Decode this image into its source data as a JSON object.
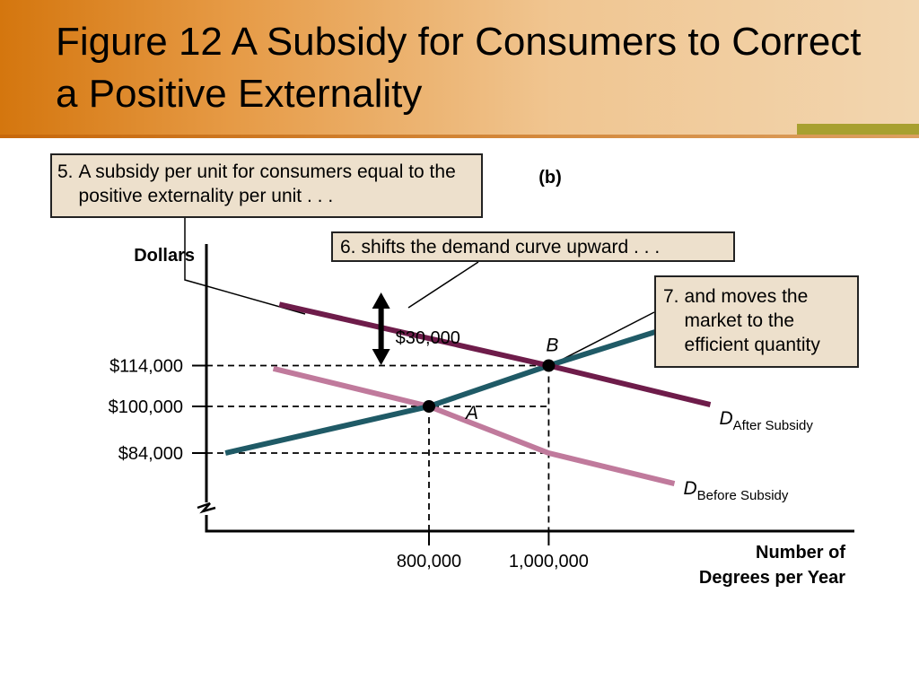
{
  "title": "Figure 12 A Subsidy for Consumers to Correct a Positive Externality",
  "colors": {
    "header_orange": "#d4760e",
    "header_light": "#f2d6b0",
    "stripe_olive": "#a8a030",
    "supply_teal": "#1f5a66",
    "demand_after": "#6e1c4a",
    "demand_before": "#c07a9c",
    "note_bg": "#ede0cc"
  },
  "notes": {
    "note5": {
      "number": "5.",
      "text": "A subsidy per unit for consumers equal to the positive externality per unit . . ."
    },
    "note6": {
      "number": "6.",
      "text": "shifts the demand curve upward . . ."
    },
    "note7": {
      "number": "7.",
      "text": "and moves the market to the efficient quantity"
    }
  },
  "chart_data": {
    "type": "line",
    "panel_label": "(b)",
    "ylabel": "Dollars",
    "xlabel": "Number of Degrees per Year",
    "y_ticks": [
      {
        "value": 114000,
        "label": "$114,000"
      },
      {
        "value": 100000,
        "label": "$100,000"
      },
      {
        "value": 84000,
        "label": "$84,000"
      }
    ],
    "x_ticks": [
      {
        "value": 800000,
        "label": "800,000"
      },
      {
        "value": 1000000,
        "label": "1,000,000"
      }
    ],
    "y_axis_break": true,
    "series": [
      {
        "key": "supply",
        "points": [
          [
            460000,
            84000
          ],
          [
            800000,
            100000
          ],
          [
            1000000,
            114000
          ],
          [
            1185000,
            126000
          ]
        ]
      },
      {
        "key": "demand_after",
        "name_main": "D",
        "name_sub": "After Subsidy",
        "points": [
          [
            550000,
            135000
          ],
          [
            1000000,
            114000
          ],
          [
            1270000,
            100600
          ]
        ]
      },
      {
        "key": "demand_before",
        "name_main": "D",
        "name_sub": "Before Subsidy",
        "points": [
          [
            540000,
            113000
          ],
          [
            800000,
            100000
          ],
          [
            1000000,
            84000
          ],
          [
            1210000,
            73500
          ]
        ]
      }
    ],
    "points": [
      {
        "label": "A",
        "x": 800000,
        "y": 100000
      },
      {
        "label": "B",
        "x": 1000000,
        "y": 114000
      }
    ],
    "subsidy": {
      "label": "$30,000",
      "value": 30000,
      "x": 720000
    }
  }
}
